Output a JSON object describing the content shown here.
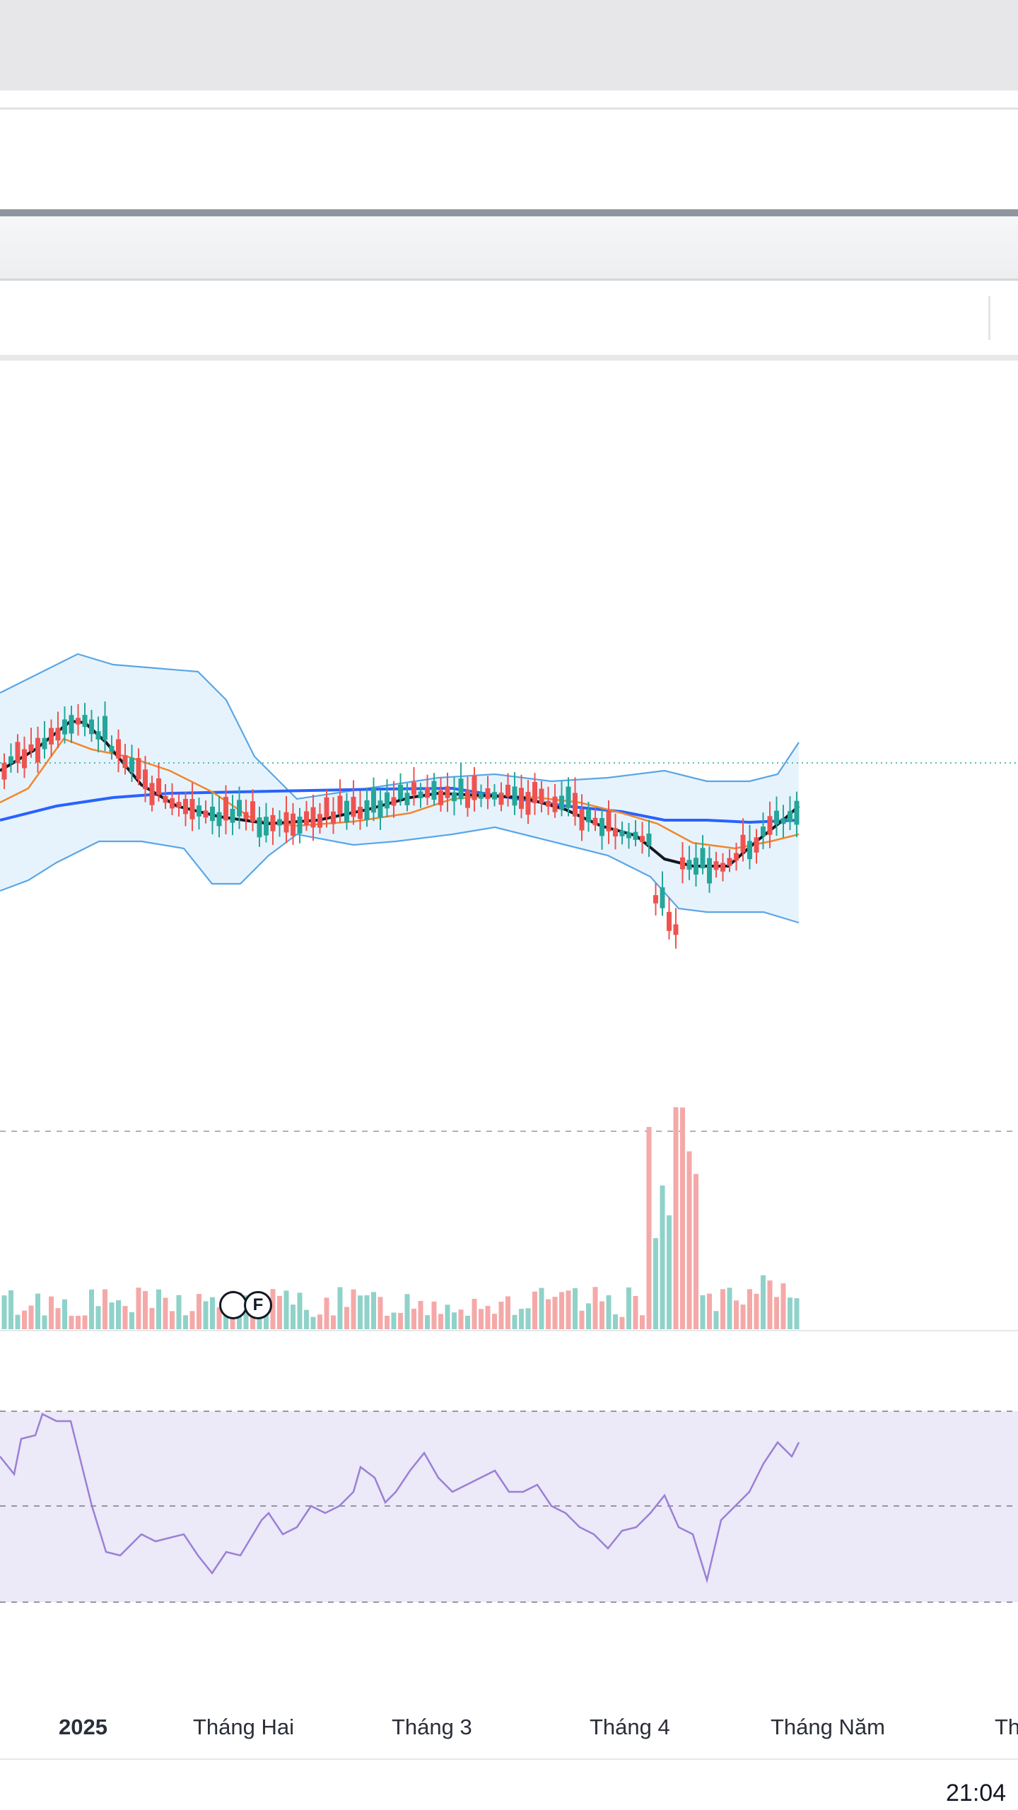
{
  "time_axis": {
    "labels": [
      "2025",
      "Tháng Hai",
      "Tháng 3",
      "Tháng 4",
      "Tháng Năm",
      "Th"
    ]
  },
  "events": [
    {
      "label": "F"
    }
  ],
  "clock": "21:04",
  "colors": {
    "bull": "#26a69a",
    "bear": "#ef5350",
    "bollinger": "#5aa6e6",
    "bollinger_fill": "#e3f1fb",
    "ma_short": "#131722",
    "ma_medium": "#f0872c",
    "ma_long": "#2962ff",
    "rsi_line": "#9b7fd6",
    "rsi_band": "#ece9f8"
  },
  "chart_data": [
    {
      "type": "candlestick",
      "panel": "price",
      "overlays": [
        "bollinger-bands",
        "moving-average-short",
        "moving-average-medium",
        "moving-average-long"
      ],
      "grid": false
    },
    {
      "type": "bar",
      "panel": "volume",
      "grid": false
    },
    {
      "type": "line",
      "panel": "rsi",
      "grid": false
    }
  ]
}
